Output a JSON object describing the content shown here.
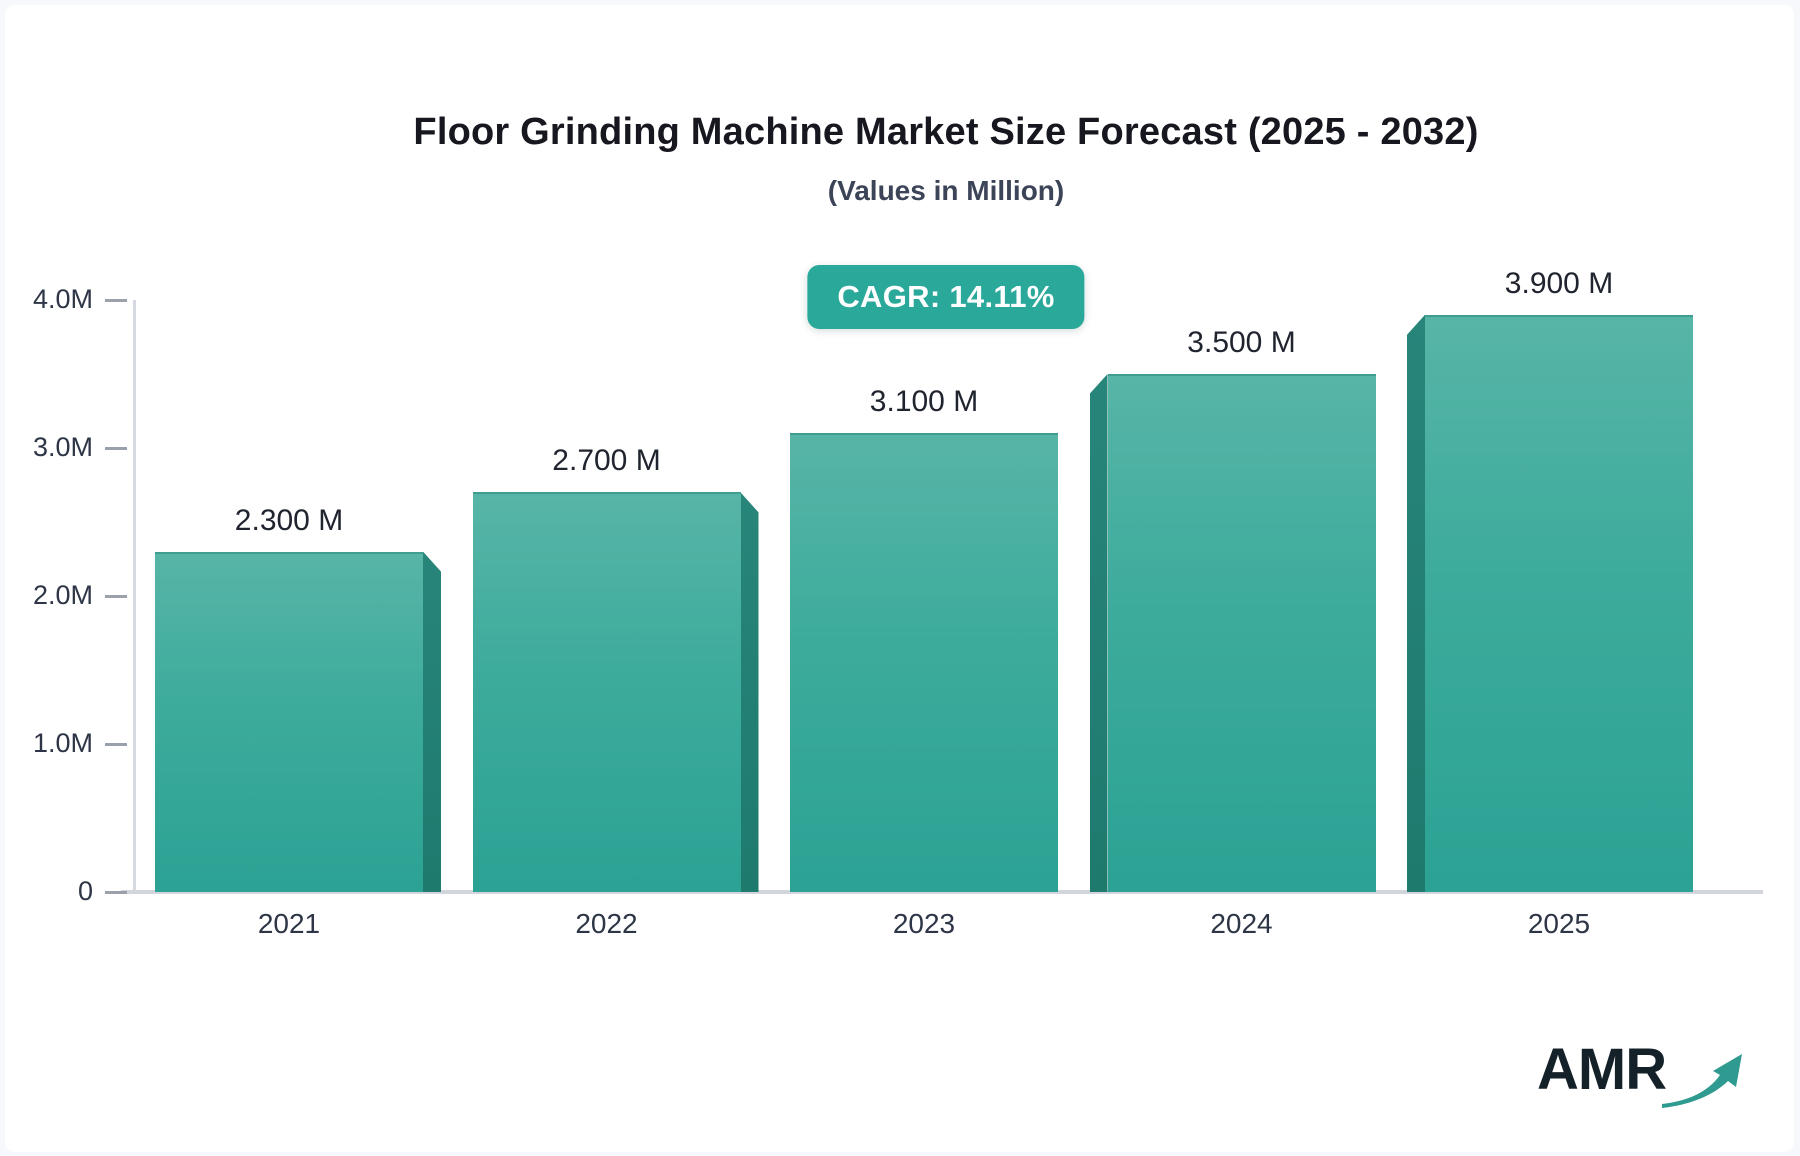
{
  "page": {
    "background": "#f7f8fb",
    "card_background": "#ffffff"
  },
  "header": {
    "title": "Floor Grinding Machine Market Size Forecast (2025 - 2032)",
    "subtitle": "(Values in Million)"
  },
  "badge": {
    "label": "CAGR: 14.11%",
    "background": "#2aa89a",
    "text_color": "#ffffff"
  },
  "chart_data": {
    "type": "bar",
    "title": "Floor Grinding Machine Market Size Forecast (2025 - 2032)",
    "subtitle": "(Values in Million)",
    "categories": [
      "2021",
      "2022",
      "2023",
      "2024",
      "2025"
    ],
    "values": [
      2.3,
      2.7,
      3.1,
      3.5,
      3.9
    ],
    "value_labels": [
      "2.300 M",
      "2.700 M",
      "3.100 M",
      "3.500 M",
      "3.900 M"
    ],
    "unit": "Million",
    "cagr": "14.11%",
    "ylim": [
      0,
      4
    ],
    "ytick_labels": [
      "0",
      "1.0M",
      "2.0M",
      "3.0M",
      "4.0M"
    ],
    "ytick_values": [
      0,
      1,
      2,
      3,
      4
    ],
    "grid": false,
    "legend_position": "none",
    "bar_style": "3d-extruded",
    "colors": {
      "bar_top": "#57b5a7",
      "bar_bottom": "#2ba294",
      "bar_side": "#1f7a6e",
      "axis_line": "#d6d9e0",
      "tick": "#9aa1ab",
      "axis_text": "#2d3546",
      "value_text": "#20242e"
    }
  },
  "logo": {
    "text": "AMR",
    "text_color": "#152129",
    "arrow_color": "#2f9a8f",
    "arrow_icon": "growth-arrow"
  }
}
